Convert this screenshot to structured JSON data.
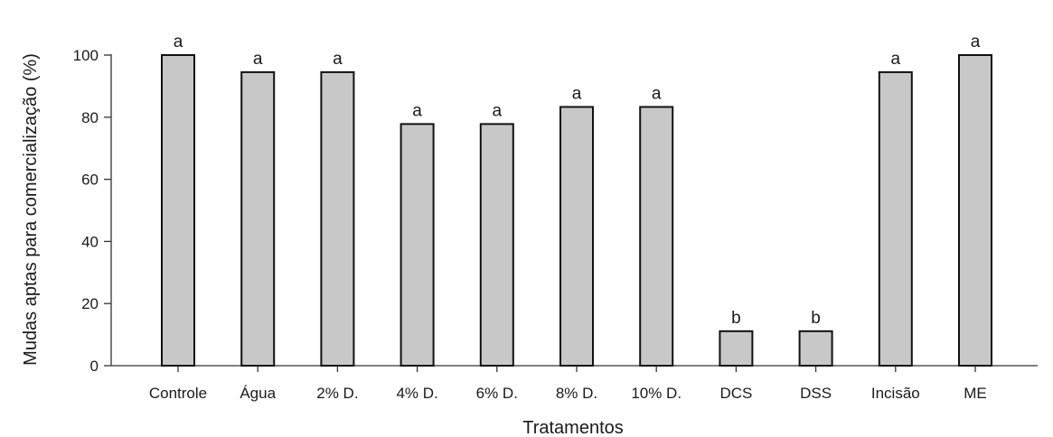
{
  "chart_data": {
    "type": "bar",
    "title": "",
    "xlabel": "Tratamentos",
    "ylabel": "Mudas aptas para comercialização (%)",
    "ylim": [
      0,
      100
    ],
    "yticks": [
      0,
      20,
      40,
      60,
      80,
      100
    ],
    "grid": false,
    "legend": "none",
    "categories": [
      "Controle",
      "Água",
      "2% D.",
      "4% D.",
      "6% D.",
      "8% D.",
      "10% D.",
      "DCS",
      "DSS",
      "Incisão",
      "ME"
    ],
    "values": [
      100,
      94.5,
      94.5,
      77.8,
      77.8,
      83.3,
      83.3,
      11.1,
      11.1,
      94.5,
      100
    ],
    "bar_labels": [
      "a",
      "a",
      "a",
      "a",
      "a",
      "a",
      "a",
      "b",
      "b",
      "a",
      "a"
    ],
    "bar_color": "#c8c8c8",
    "edge_color": "#111111"
  }
}
